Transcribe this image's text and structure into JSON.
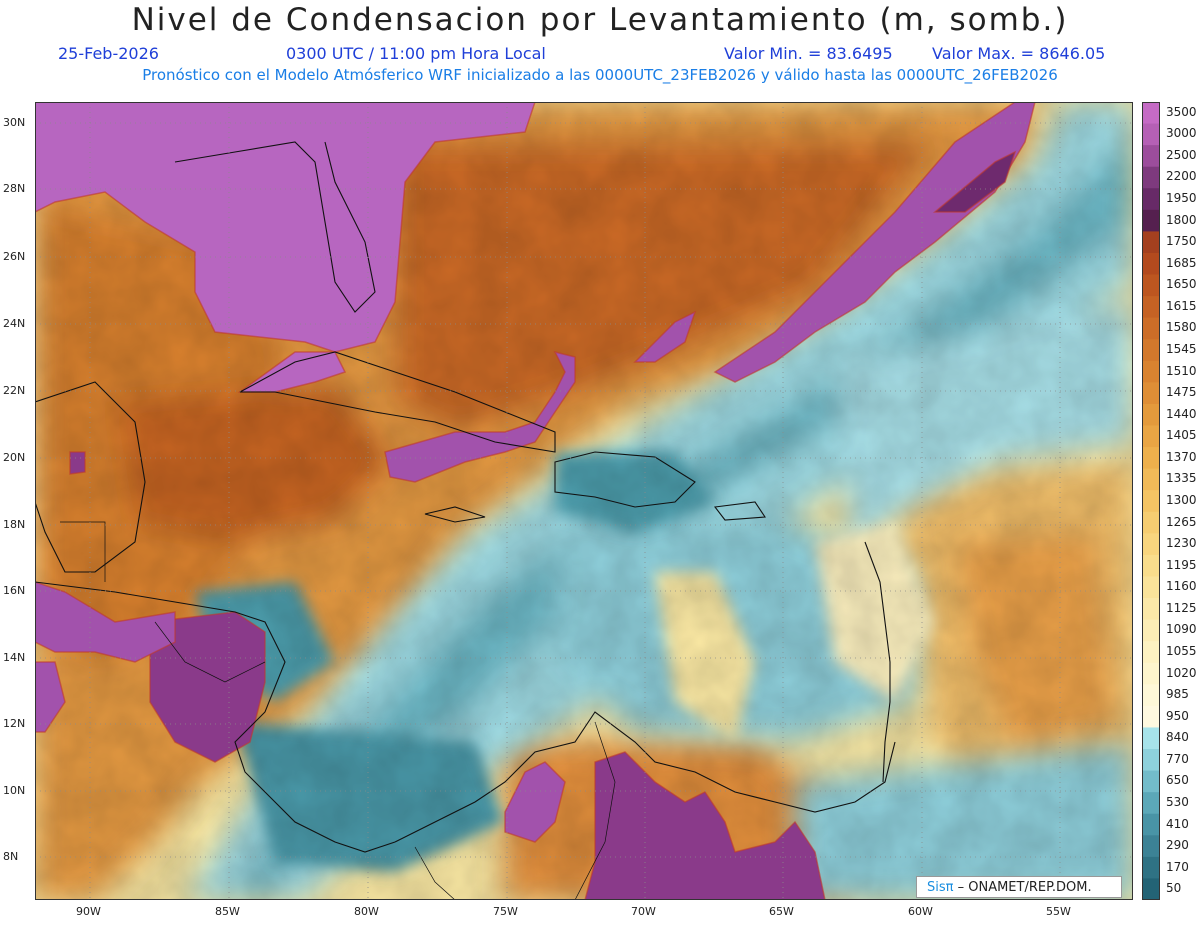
{
  "title": "Nivel de Condensacion por Levantamiento (m, somb.)",
  "date": "25-Feb-2026",
  "time": "0300 UTC / 11:00 pm Hora Local",
  "valmin": "Valor Min. = 83.6495",
  "valmax": "Valor Max. = 8646.05",
  "description": "Pronóstico con el Modelo Atmósferico WRF inicializado a las 0000UTC_23FEB2026 y válido hasta las  0000UTC_26FEB2026",
  "credit_logo": "Sisπ",
  "credit_text": "– ONAMET/REP.DOM.",
  "lat_labels": [
    "30N",
    "28N",
    "26N",
    "24N",
    "22N",
    "20N",
    "18N",
    "16N",
    "14N",
    "12N",
    "10N",
    "8N"
  ],
  "lon_labels": [
    "90W",
    "85W",
    "80W",
    "75W",
    "70W",
    "65W",
    "60W",
    "55W"
  ],
  "legend": {
    "levels": [
      "3500",
      "3000",
      "2500",
      "2200",
      "1950",
      "1800",
      "1750",
      "1685",
      "1650",
      "1615",
      "1580",
      "1545",
      "1510",
      "1475",
      "1440",
      "1405",
      "1370",
      "1335",
      "1300",
      "1265",
      "1230",
      "1195",
      "1160",
      "1125",
      "1090",
      "1055",
      "1020",
      "985",
      "950",
      "840",
      "770",
      "650",
      "530",
      "410",
      "290",
      "170",
      "50"
    ],
    "colors": [
      "#c56bc5",
      "#b560b5",
      "#9c4d9c",
      "#7e3a7e",
      "#672a67",
      "#55204f",
      "#a4401f",
      "#b34a1e",
      "#bd5620",
      "#c56224",
      "#cc6d28",
      "#d2782c",
      "#d98330",
      "#de8e36",
      "#e39a3c",
      "#e9a544",
      "#eeb04c",
      "#f1ba58",
      "#f4c464",
      "#f6cd71",
      "#f8d57e",
      "#f9dd8c",
      "#fae39a",
      "#fbe8a8",
      "#fcedb6",
      "#fdf2c2",
      "#fdf5cd",
      "#fef8d8",
      "#fff9e0",
      "#a7e3ea",
      "#8ed1dc",
      "#73bcca",
      "#5ca8b8",
      "#4994a6",
      "#3c8295",
      "#2f7284",
      "#236375"
    ]
  },
  "colors": {
    "land_purple": "#b766c0",
    "dark_purple": "#8a3a8a",
    "orange_dark": "#c46524",
    "orange": "#e59a42",
    "yellow": "#fbe9a4",
    "cyan": "#9fdbe4",
    "teal": "#5aaab8"
  }
}
